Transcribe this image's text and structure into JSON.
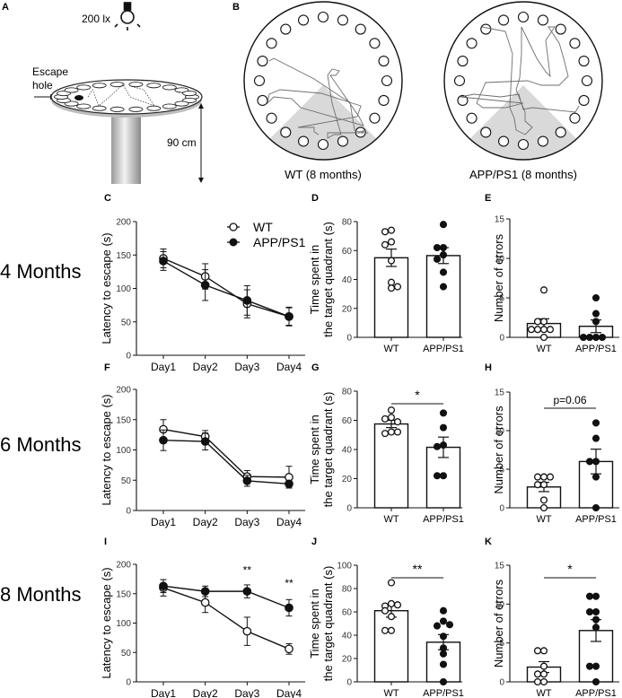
{
  "panels": {
    "A": {
      "letter": "A",
      "light_label": "200 lx",
      "escape_label_1": "Escape",
      "escape_label_2": "hole",
      "height_label": "90 cm"
    },
    "B": {
      "letter": "B",
      "left_caption": "WT (8 months)",
      "right_caption": "APP/PS1 (8 months)"
    }
  },
  "row_labels": [
    "4 Months",
    "6 Months",
    "8 Months"
  ],
  "legend": {
    "wt": "WT",
    "app": "APP/PS1"
  },
  "colors": {
    "ink": "#111111",
    "quadrant": "#d9d9d9",
    "track": "#6e6e6e"
  },
  "chart_data": [
    {
      "id": "C",
      "letter": "C",
      "type": "line",
      "ylabel": "Latency to escape (s)",
      "xlabel": "",
      "categories": [
        "Day1",
        "Day2",
        "Day3",
        "Day4"
      ],
      "ylim": [
        0,
        200
      ],
      "yticks": [
        0,
        50,
        100,
        150,
        200
      ],
      "legend": "top-right",
      "series": [
        {
          "name": "WT",
          "marker": "open",
          "values": [
            145,
            118,
            77,
            58
          ],
          "sem": [
            14,
            19,
            21,
            13
          ]
        },
        {
          "name": "APP/PS1",
          "marker": "filled",
          "values": [
            141,
            105,
            82,
            58
          ],
          "sem": [
            14,
            23,
            22,
            14
          ]
        }
      ],
      "annotations": []
    },
    {
      "id": "D",
      "letter": "D",
      "type": "bar",
      "ylabel": "Time spent in the target quadrant (s)",
      "categories": [
        "WT",
        "APP/PS1"
      ],
      "ylim": [
        0,
        80
      ],
      "yticks": [
        0,
        20,
        40,
        60,
        80
      ],
      "means": [
        55,
        56.5
      ],
      "sem": [
        6,
        5.5
      ],
      "points": [
        [
          74,
          73,
          66,
          64,
          53,
          38,
          34,
          35
        ],
        [
          78,
          62,
          62,
          57,
          54,
          45,
          35
        ]
      ],
      "significance": null
    },
    {
      "id": "E",
      "letter": "E",
      "type": "bar",
      "ylabel": "Number of errors",
      "categories": [
        "WT",
        "APP/PS1"
      ],
      "ylim": [
        0,
        15
      ],
      "yticks": [
        0,
        5,
        10,
        15
      ],
      "means": [
        1.75,
        1.4
      ],
      "sem": [
        0.6,
        0.8
      ],
      "points": [
        [
          6,
          2,
          2,
          1,
          1,
          1,
          1,
          0
        ],
        [
          5,
          3,
          2,
          0,
          0,
          0,
          0
        ]
      ],
      "significance": null
    },
    {
      "id": "F",
      "letter": "F",
      "type": "line",
      "ylabel": "Latency to escape (s)",
      "categories": [
        "Day1",
        "Day2",
        "Day3",
        "Day4"
      ],
      "ylim": [
        0,
        200
      ],
      "yticks": [
        0,
        50,
        100,
        150,
        200
      ],
      "series": [
        {
          "name": "WT",
          "marker": "open",
          "values": [
            134,
            122,
            56,
            55
          ],
          "sem": [
            16,
            10,
            10,
            18
          ]
        },
        {
          "name": "APP/PS1",
          "marker": "filled",
          "values": [
            116,
            114,
            49,
            44
          ],
          "sem": [
            17,
            14,
            9,
            5
          ]
        }
      ],
      "annotations": []
    },
    {
      "id": "G",
      "letter": "G",
      "type": "bar",
      "ylabel": "Time spent in the target quadrant (s)",
      "categories": [
        "WT",
        "APP/PS1"
      ],
      "ylim": [
        0,
        80
      ],
      "yticks": [
        0,
        20,
        40,
        60,
        80
      ],
      "means": [
        57.5,
        41.5
      ],
      "sem": [
        2.5,
        7
      ],
      "points": [
        [
          67,
          62,
          61,
          59,
          52,
          51,
          52
        ],
        [
          65,
          55,
          43,
          42,
          22,
          22
        ]
      ],
      "significance": "*"
    },
    {
      "id": "H",
      "letter": "H",
      "type": "bar",
      "ylabel": "Number of errors",
      "categories": [
        "WT",
        "APP/PS1"
      ],
      "ylim": [
        0,
        15
      ],
      "yticks": [
        0,
        5,
        10,
        15
      ],
      "means": [
        2.7,
        6
      ],
      "sem": [
        0.6,
        1.6
      ],
      "points": [
        [
          4,
          4,
          4,
          3,
          3,
          1,
          0
        ],
        [
          11,
          9,
          6,
          6,
          4,
          0
        ]
      ],
      "significance": "p=0.06"
    },
    {
      "id": "I",
      "letter": "I",
      "type": "line",
      "ylabel": "Latency to escape (s)",
      "categories": [
        "Day1",
        "Day2",
        "Day3",
        "Day4"
      ],
      "ylim": [
        0,
        200
      ],
      "yticks": [
        0,
        50,
        100,
        150,
        200
      ],
      "series": [
        {
          "name": "WT",
          "marker": "open",
          "values": [
            160,
            135,
            86,
            56
          ],
          "sem": [
            14,
            17,
            24,
            9
          ]
        },
        {
          "name": "APP/PS1",
          "marker": "filled",
          "values": [
            163,
            154,
            154,
            126
          ],
          "sem": [
            11,
            9,
            11,
            14
          ]
        }
      ],
      "annotations": [
        {
          "category": "Day3",
          "text": "**",
          "y": 190
        },
        {
          "category": "Day4",
          "text": "**",
          "y": 168
        }
      ]
    },
    {
      "id": "J",
      "letter": "J",
      "type": "bar",
      "ylabel": "Time spent in the target quadrant (s)",
      "categories": [
        "WT",
        "APP/PS1"
      ],
      "ylim": [
        0,
        100
      ],
      "yticks": [
        0,
        20,
        40,
        60,
        80,
        100
      ],
      "means": [
        61,
        34
      ],
      "sem": [
        5.5,
        6.5
      ],
      "points": [
        [
          85,
          67,
          65,
          66,
          61,
          56,
          44,
          44
        ],
        [
          61,
          52,
          48,
          49,
          39,
          29,
          24,
          15,
          0
        ]
      ],
      "significance": "**"
    },
    {
      "id": "K",
      "letter": "K",
      "type": "bar",
      "ylabel": "Number of errors",
      "categories": [
        "WT",
        "APP/PS1"
      ],
      "ylim": [
        0,
        15
      ],
      "yticks": [
        0,
        5,
        10,
        15
      ],
      "means": [
        1.9,
        6.6
      ],
      "sem": [
        0.7,
        1.4
      ],
      "points": [
        [
          4,
          4,
          2,
          1,
          1,
          0,
          0
        ],
        [
          11,
          11,
          9,
          9,
          8,
          7,
          2,
          2,
          0
        ]
      ],
      "significance": "*"
    }
  ]
}
